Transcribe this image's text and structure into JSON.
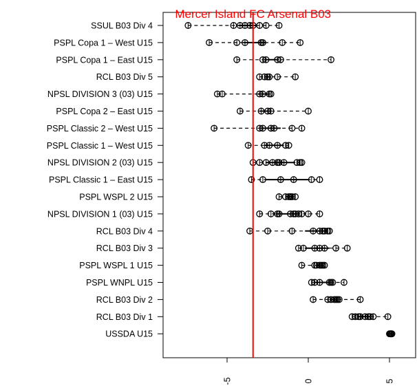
{
  "chart_data": {
    "type": "boxplot-dot",
    "title": "",
    "xlabel": "",
    "ylabel": "",
    "xlim": [
      -9,
      6
    ],
    "x_ticks": [
      -5,
      0,
      5
    ],
    "x_tick_labels": [
      "-5",
      "0",
      "5"
    ],
    "reference_line": {
      "x": -3.4,
      "label": "Mercer Island FC Arsenal B03",
      "color": "#ff0000"
    },
    "categories": [
      {
        "label": "SSUL B03 Div 4",
        "points": [
          -7.4,
          -4.6,
          -4.2,
          -3.9,
          -3.6,
          -3.4,
          -3.0,
          -2.6,
          -1.8
        ],
        "whisker": [
          -7.4,
          -1.8
        ],
        "box": [
          -4.3,
          -3.2
        ]
      },
      {
        "label": "PSPL Copa 1 – West U15",
        "points": [
          -6.1,
          -4.4,
          -3.9,
          -2.9,
          -2.8,
          -1.6,
          -0.5
        ],
        "whisker": [
          -6.1,
          -0.5
        ],
        "box": [
          -4.0,
          -2.6
        ]
      },
      {
        "label": "PSPL Copa 1 – East U15",
        "points": [
          -4.4,
          -2.8,
          -2.6,
          -1.9,
          -1.7,
          1.4
        ],
        "whisker": [
          -4.4,
          1.4
        ],
        "box": [
          -2.7,
          -1.8
        ]
      },
      {
        "label": "RCL B03 Div 5",
        "points": [
          -3.0,
          -2.7,
          -2.5,
          -2.4,
          -1.9,
          -0.8
        ],
        "whisker": [
          -3.0,
          -0.8
        ],
        "box": [
          -2.7,
          -2.3
        ]
      },
      {
        "label": "NPSL DIVISION 3 (03) U15",
        "points": [
          -5.6,
          -5.3,
          -3.0,
          -2.8,
          -2.4,
          -2.3
        ],
        "whisker": [
          -5.6,
          -2.3
        ],
        "box": [
          -3.1,
          -2.4
        ]
      },
      {
        "label": "PSPL Copa 2 – East U15",
        "points": [
          -4.2,
          -2.9,
          -2.5,
          -2.3,
          0.0
        ],
        "whisker": [
          -4.2,
          0.0
        ],
        "box": [
          -3.0,
          -2.3
        ]
      },
      {
        "label": "PSPL Classic 2 – West U15",
        "points": [
          -5.8,
          -3.0,
          -2.8,
          -2.3,
          -2.1,
          -1.0,
          -0.4
        ],
        "whisker": [
          -5.8,
          -0.4
        ],
        "box": [
          -3.0,
          -1.7
        ]
      },
      {
        "label": "PSPL Classic 1 – West U15",
        "points": [
          -3.7,
          -2.7,
          -2.4,
          -1.9,
          -1.4,
          -1.2
        ],
        "whisker": [
          -3.7,
          -1.2
        ],
        "box": [
          -2.7,
          -1.5
        ]
      },
      {
        "label": "NPSL DIVISION 2 (03) U15",
        "points": [
          -3.4,
          -3.0,
          -2.6,
          -2.2,
          -1.9,
          -1.8,
          -1.5,
          -0.7,
          -0.5,
          -0.4
        ],
        "whisker": [
          -3.4,
          -0.4
        ],
        "box": [
          -2.6,
          -0.8
        ]
      },
      {
        "label": "PSPL Classic 1 – East U15",
        "points": [
          -3.5,
          -2.8,
          -1.7,
          -0.9,
          0.2,
          0.7
        ],
        "whisker": [
          -3.5,
          0.7
        ],
        "box": [
          -2.6,
          0.0
        ]
      },
      {
        "label": "PSPL WSPL 2 U15",
        "points": [
          -1.8,
          -1.4,
          -1.2,
          -1.1,
          -1.0,
          -0.8
        ],
        "whisker": [
          -1.8,
          -0.8
        ],
        "box": [
          -1.4,
          -1.0
        ]
      },
      {
        "label": "NPSL DIVISION 1 (03) U15",
        "points": [
          -3.0,
          -2.3,
          -1.9,
          -1.8,
          -1.1,
          -0.9,
          -0.8,
          -0.6,
          -0.4,
          0.0,
          0.7
        ],
        "whisker": [
          -3.0,
          0.7
        ],
        "box": [
          -2.0,
          -0.5
        ]
      },
      {
        "label": "RCL B03 Div 4",
        "points": [
          -3.6,
          -2.5,
          -1.0,
          0.3,
          0.7,
          0.9,
          1.0,
          1.2,
          1.3
        ],
        "whisker": [
          -3.6,
          1.3
        ],
        "box": [
          -0.2,
          1.1
        ]
      },
      {
        "label": "RCL B03 Div 3",
        "points": [
          -0.6,
          -0.3,
          0.4,
          0.7,
          1.0,
          1.7,
          2.4
        ],
        "whisker": [
          -0.6,
          2.4
        ],
        "box": [
          -0.2,
          1.3
        ]
      },
      {
        "label": "PSPL WSPL 1 U15",
        "points": [
          -0.4,
          0.4,
          0.5,
          0.7,
          0.8,
          0.9,
          1.0
        ],
        "whisker": [
          -0.4,
          1.0
        ],
        "box": [
          0.5,
          0.9
        ]
      },
      {
        "label": "PSPL WNPL U15",
        "points": [
          0.2,
          0.4,
          0.7,
          1.3,
          1.4,
          1.5,
          2.2
        ],
        "whisker": [
          0.2,
          2.2
        ],
        "box": [
          0.4,
          1.4
        ]
      },
      {
        "label": "RCL B03 Div 2",
        "points": [
          0.3,
          1.2,
          1.4,
          1.6,
          1.7,
          1.8,
          1.9,
          3.2
        ],
        "whisker": [
          0.3,
          3.2
        ],
        "box": [
          1.3,
          1.8
        ]
      },
      {
        "label": "RCL B03 Div 1",
        "points": [
          2.7,
          2.9,
          3.1,
          3.2,
          3.5,
          3.7,
          3.8,
          4.0,
          4.9
        ],
        "whisker": [
          2.7,
          4.9
        ],
        "box": [
          3.0,
          3.8
        ]
      },
      {
        "label": "USSDA U15",
        "points": [
          5.0,
          5.05,
          5.1,
          5.1,
          5.15
        ],
        "whisker": [
          5.0,
          5.15
        ],
        "box": [
          5.05,
          5.1
        ]
      }
    ]
  }
}
